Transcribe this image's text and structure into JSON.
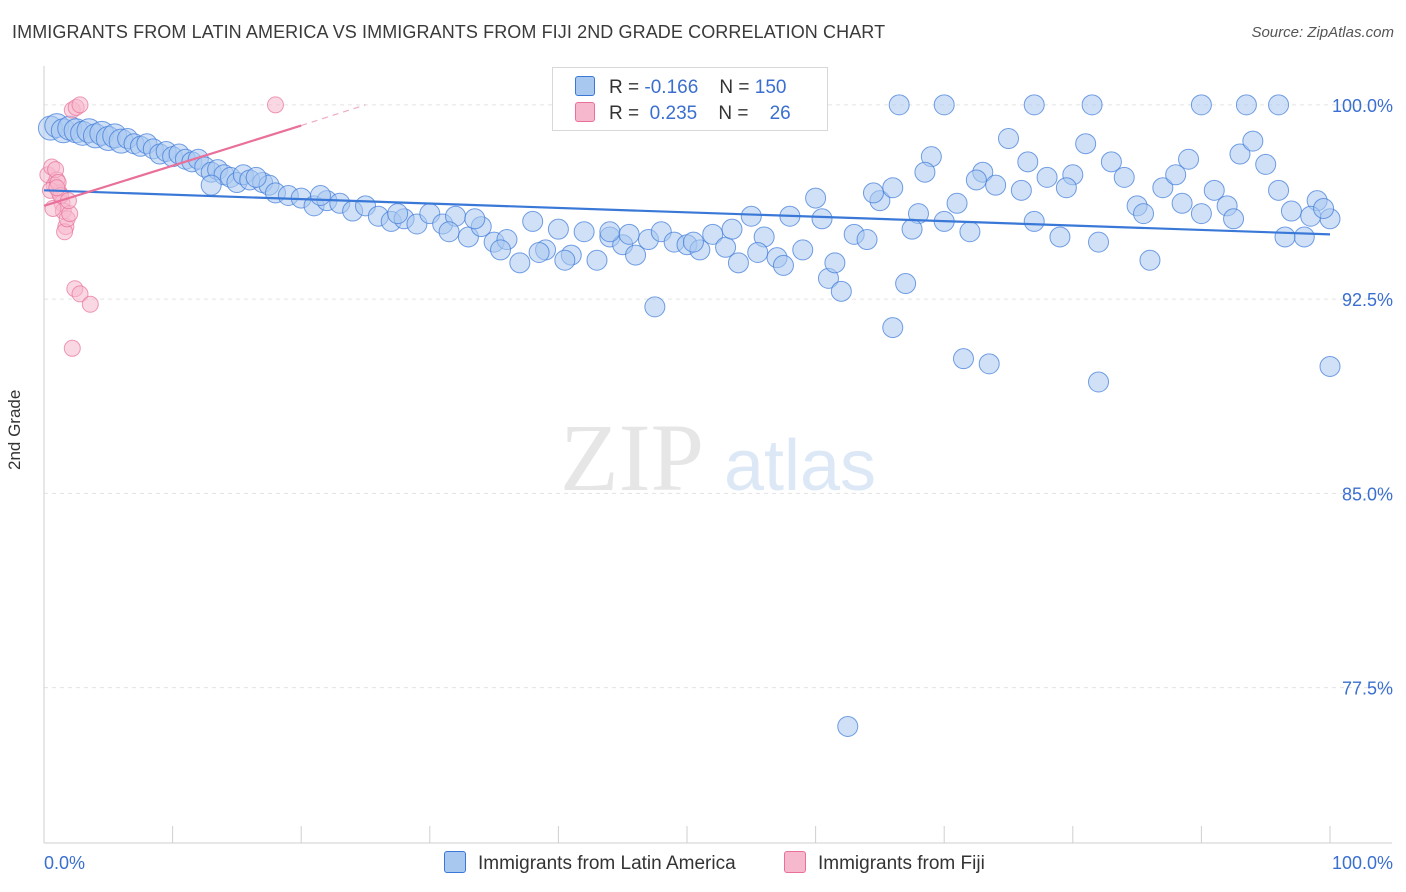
{
  "title": "IMMIGRANTS FROM LATIN AMERICA VS IMMIGRANTS FROM FIJI 2ND GRADE CORRELATION CHART",
  "source": "Source: ZipAtlas.com",
  "watermark": {
    "zip": "ZIP",
    "atlas": "atlas"
  },
  "colors": {
    "blue": "#3a78d8",
    "blue_fill": "#a9c8f0",
    "pink": "#e8709a",
    "pink_fill": "#f5b8cc",
    "tick_label": "#3a6fd0"
  },
  "legend": {
    "rows": [
      {
        "r_label": "R =",
        "r_value": "-0.166",
        "n_label": "N =",
        "n_value": "150"
      },
      {
        "r_label": "R =",
        "r_value": "0.235",
        "n_label": "N =",
        "n_value": "26"
      }
    ]
  },
  "chart_data": {
    "type": "scatter",
    "title": "IMMIGRANTS FROM LATIN AMERICA VS IMMIGRANTS FROM FIJI 2ND GRADE CORRELATION CHART",
    "xlabel": "",
    "ylabel": "2nd Grade",
    "xlim": [
      0,
      100
    ],
    "ylim": [
      71.5,
      101.5
    ],
    "x_tick_labels": [
      "0.0%",
      "100.0%"
    ],
    "y_ticks": [
      100.0,
      92.5,
      85.0,
      77.5
    ],
    "y_tick_labels": [
      "100.0%",
      "92.5%",
      "85.0%",
      "77.5%"
    ],
    "grid": true,
    "legend_placement": "bottom",
    "series": [
      {
        "name": "Immigrants from Latin America",
        "color": "#3a78d8",
        "trend": {
          "x": [
            0,
            100
          ],
          "y": [
            96.7,
            95.0
          ]
        },
        "points": [
          [
            0.5,
            99.1
          ],
          [
            1.0,
            99.2
          ],
          [
            1.5,
            99.0
          ],
          [
            2.0,
            99.1
          ],
          [
            2.5,
            99.0
          ],
          [
            3.0,
            98.9
          ],
          [
            3.5,
            99.0
          ],
          [
            4.0,
            98.8
          ],
          [
            4.5,
            98.9
          ],
          [
            5.0,
            98.7
          ],
          [
            5.5,
            98.8
          ],
          [
            6.0,
            98.6
          ],
          [
            6.5,
            98.7
          ],
          [
            7.0,
            98.5
          ],
          [
            7.5,
            98.4
          ],
          [
            8.0,
            98.5
          ],
          [
            8.5,
            98.3
          ],
          [
            9.0,
            98.1
          ],
          [
            9.5,
            98.2
          ],
          [
            10.0,
            98.0
          ],
          [
            10.5,
            98.1
          ],
          [
            11.0,
            97.9
          ],
          [
            11.5,
            97.8
          ],
          [
            12.0,
            97.9
          ],
          [
            12.5,
            97.6
          ],
          [
            13.0,
            97.4
          ],
          [
            13.5,
            97.5
          ],
          [
            14.0,
            97.3
          ],
          [
            14.5,
            97.2
          ],
          [
            15.0,
            97.0
          ],
          [
            15.5,
            97.3
          ],
          [
            16.0,
            97.1
          ],
          [
            17.0,
            97.0
          ],
          [
            17.5,
            96.9
          ],
          [
            18.0,
            96.6
          ],
          [
            19.0,
            96.5
          ],
          [
            20.0,
            96.4
          ],
          [
            21.0,
            96.1
          ],
          [
            22.0,
            96.3
          ],
          [
            23.0,
            96.2
          ],
          [
            24.0,
            95.9
          ],
          [
            25.0,
            96.1
          ],
          [
            26.0,
            95.7
          ],
          [
            27.0,
            95.5
          ],
          [
            28.0,
            95.6
          ],
          [
            29.0,
            95.4
          ],
          [
            30.0,
            95.8
          ],
          [
            31.0,
            95.4
          ],
          [
            32.0,
            95.7
          ],
          [
            33.0,
            94.9
          ],
          [
            34.0,
            95.3
          ],
          [
            35.0,
            94.7
          ],
          [
            36.0,
            94.8
          ],
          [
            37.0,
            93.9
          ],
          [
            38.0,
            95.5
          ],
          [
            39.0,
            94.4
          ],
          [
            40.0,
            95.2
          ],
          [
            41.0,
            94.2
          ],
          [
            42.0,
            95.1
          ],
          [
            43.0,
            94.0
          ],
          [
            44.0,
            94.9
          ],
          [
            45.0,
            94.6
          ],
          [
            46.0,
            94.2
          ],
          [
            47.0,
            94.8
          ],
          [
            48.0,
            95.1
          ],
          [
            49.0,
            94.7
          ],
          [
            50.0,
            94.6
          ],
          [
            51.0,
            94.4
          ],
          [
            52.0,
            95.0
          ],
          [
            53.0,
            94.5
          ],
          [
            54.0,
            93.9
          ],
          [
            55.0,
            95.7
          ],
          [
            56.0,
            94.9
          ],
          [
            57.0,
            94.1
          ],
          [
            58.0,
            95.7
          ],
          [
            59.0,
            94.4
          ],
          [
            60.0,
            96.4
          ],
          [
            61.0,
            93.3
          ],
          [
            62.0,
            92.8
          ],
          [
            63.0,
            95.0
          ],
          [
            64.0,
            94.8
          ],
          [
            65.0,
            96.3
          ],
          [
            66.0,
            96.8
          ],
          [
            67.0,
            93.1
          ],
          [
            68.0,
            95.8
          ],
          [
            69.0,
            98.0
          ],
          [
            70.0,
            95.5
          ],
          [
            71.0,
            96.2
          ],
          [
            72.0,
            95.1
          ],
          [
            73.0,
            97.4
          ],
          [
            74.0,
            96.9
          ],
          [
            75.0,
            98.7
          ],
          [
            76.0,
            96.7
          ],
          [
            77.0,
            95.5
          ],
          [
            78.0,
            97.2
          ],
          [
            79.0,
            94.9
          ],
          [
            80.0,
            97.3
          ],
          [
            81.0,
            98.5
          ],
          [
            82.0,
            94.7
          ],
          [
            83.0,
            97.8
          ],
          [
            84.0,
            97.2
          ],
          [
            85.0,
            96.1
          ],
          [
            86.0,
            94.0
          ],
          [
            87.0,
            96.8
          ],
          [
            88.0,
            97.3
          ],
          [
            89.0,
            97.9
          ],
          [
            90.0,
            95.8
          ],
          [
            91.0,
            96.7
          ],
          [
            92.0,
            96.1
          ],
          [
            93.0,
            98.1
          ],
          [
            94.0,
            98.6
          ],
          [
            95.0,
            97.7
          ],
          [
            96.0,
            96.7
          ],
          [
            97.0,
            95.9
          ],
          [
            98.0,
            94.9
          ],
          [
            99.0,
            96.3
          ],
          [
            100.0,
            95.6
          ],
          [
            66.5,
            100.0
          ],
          [
            70.0,
            100.0
          ],
          [
            77.0,
            100.0
          ],
          [
            81.5,
            100.0
          ],
          [
            90.0,
            100.0
          ],
          [
            93.5,
            100.0
          ],
          [
            96.0,
            100.0
          ],
          [
            44.0,
            95.1
          ],
          [
            38.5,
            94.3
          ],
          [
            33.5,
            95.6
          ],
          [
            47.5,
            92.2
          ],
          [
            66.0,
            91.4
          ],
          [
            71.5,
            90.2
          ],
          [
            73.5,
            90.0
          ],
          [
            82.0,
            89.3
          ],
          [
            100.0,
            89.9
          ],
          [
            62.5,
            76.0
          ],
          [
            16.5,
            97.2
          ],
          [
            13.0,
            96.9
          ],
          [
            21.5,
            96.5
          ],
          [
            27.5,
            95.8
          ],
          [
            31.5,
            95.1
          ],
          [
            35.5,
            94.4
          ],
          [
            40.5,
            94.0
          ],
          [
            45.5,
            95.0
          ],
          [
            50.5,
            94.7
          ],
          [
            55.5,
            94.3
          ],
          [
            60.5,
            95.6
          ],
          [
            64.5,
            96.6
          ],
          [
            68.5,
            97.4
          ],
          [
            72.5,
            97.1
          ],
          [
            76.5,
            97.8
          ],
          [
            79.5,
            96.8
          ],
          [
            85.5,
            95.8
          ],
          [
            88.5,
            96.2
          ],
          [
            92.5,
            95.6
          ],
          [
            96.5,
            94.9
          ],
          [
            98.5,
            95.7
          ],
          [
            99.5,
            96.0
          ],
          [
            53.5,
            95.2
          ],
          [
            57.5,
            93.8
          ],
          [
            61.5,
            93.9
          ],
          [
            67.5,
            95.2
          ]
        ]
      },
      {
        "name": "Immigrants from Fiji",
        "color": "#e8709a",
        "trend": {
          "x": [
            0,
            20
          ],
          "y": [
            96.1,
            99.2
          ]
        },
        "trend_dashed": {
          "x": [
            20,
            25
          ],
          "y": [
            99.2,
            100.0
          ]
        },
        "points": [
          [
            0.3,
            97.3
          ],
          [
            0.6,
            97.6
          ],
          [
            0.8,
            96.9
          ],
          [
            1.0,
            97.1
          ],
          [
            1.2,
            96.6
          ],
          [
            1.4,
            96.2
          ],
          [
            0.5,
            96.7
          ],
          [
            0.9,
            97.5
          ],
          [
            1.1,
            97.0
          ],
          [
            1.3,
            96.5
          ],
          [
            1.5,
            95.9
          ],
          [
            1.7,
            95.3
          ],
          [
            1.6,
            95.1
          ],
          [
            1.8,
            95.6
          ],
          [
            2.0,
            95.8
          ],
          [
            1.9,
            96.3
          ],
          [
            2.2,
            99.8
          ],
          [
            2.5,
            99.9
          ],
          [
            2.8,
            100.0
          ],
          [
            2.4,
            92.9
          ],
          [
            2.8,
            92.7
          ],
          [
            3.6,
            92.3
          ],
          [
            2.2,
            90.6
          ],
          [
            18.0,
            100.0
          ],
          [
            0.7,
            96.0
          ],
          [
            1.0,
            96.8
          ]
        ]
      }
    ]
  }
}
